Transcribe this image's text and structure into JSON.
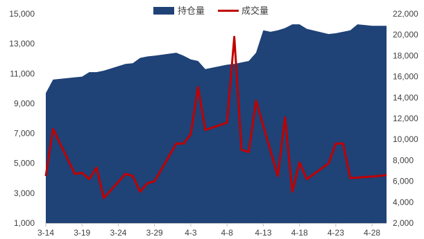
{
  "chart_data": {
    "type": "area+line",
    "legend": {
      "placement": "top-center",
      "entries": [
        "持仓量",
        "成交量"
      ]
    },
    "x_tick_labels": [
      "3-14",
      "3-19",
      "3-24",
      "3-29",
      "4-3",
      "4-8",
      "4-13",
      "4-18",
      "4-23",
      "4-28"
    ],
    "left_axis": {
      "ylim": [
        1000,
        15000
      ],
      "ticks": [
        "1,000",
        "3,000",
        "5,000",
        "7,000",
        "9,000",
        "11,000",
        "13,000",
        "15,000"
      ]
    },
    "right_axis": {
      "ylim": [
        2000,
        22000
      ],
      "ticks": [
        "2,000",
        "4,000",
        "6,000",
        "8,000",
        "10,000",
        "12,000",
        "14,000",
        "16,000",
        "18,000",
        "20,000",
        "22,000"
      ]
    },
    "x_range": [
      "2019-03-14",
      "2019-04-30"
    ],
    "series": [
      {
        "name": "持仓量",
        "type": "area",
        "axis": "left",
        "color": "#1F4277",
        "points": [
          [
            "2019-03-14",
            9700
          ],
          [
            "2019-03-15",
            10600
          ],
          [
            "2019-03-18",
            10750
          ],
          [
            "2019-03-19",
            10800
          ],
          [
            "2019-03-20",
            11100
          ],
          [
            "2019-03-21",
            11100
          ],
          [
            "2019-03-22",
            11200
          ],
          [
            "2019-03-25",
            11650
          ],
          [
            "2019-03-26",
            11700
          ],
          [
            "2019-03-27",
            12050
          ],
          [
            "2019-03-28",
            12150
          ],
          [
            "2019-03-29",
            12200
          ],
          [
            "2019-04-01",
            12400
          ],
          [
            "2019-04-02",
            12200
          ],
          [
            "2019-04-03",
            11950
          ],
          [
            "2019-04-04",
            11850
          ],
          [
            "2019-04-05",
            11300
          ],
          [
            "2019-04-08",
            11600
          ],
          [
            "2019-04-09",
            11650
          ],
          [
            "2019-04-10",
            11750
          ],
          [
            "2019-04-11",
            11850
          ],
          [
            "2019-04-12",
            12400
          ],
          [
            "2019-04-13",
            13900
          ],
          [
            "2019-04-14",
            13800
          ],
          [
            "2019-04-15",
            13900
          ],
          [
            "2019-04-16",
            14050
          ],
          [
            "2019-04-17",
            14300
          ],
          [
            "2019-04-18",
            14300
          ],
          [
            "2019-04-19",
            14000
          ],
          [
            "2019-04-22",
            13650
          ],
          [
            "2019-04-23",
            13700
          ],
          [
            "2019-04-24",
            13800
          ],
          [
            "2019-04-25",
            13900
          ],
          [
            "2019-04-26",
            14300
          ],
          [
            "2019-04-27",
            14250
          ],
          [
            "2019-04-28",
            14200
          ],
          [
            "2019-04-29",
            14200
          ],
          [
            "2019-04-30",
            14200
          ]
        ]
      },
      {
        "name": "成交量",
        "type": "line",
        "axis": "right",
        "color": "#C00000",
        "points": [
          [
            "2019-03-14",
            6500
          ],
          [
            "2019-03-15",
            11000
          ],
          [
            "2019-03-18",
            6700
          ],
          [
            "2019-03-19",
            6800
          ],
          [
            "2019-03-20",
            6200
          ],
          [
            "2019-03-21",
            7300
          ],
          [
            "2019-03-22",
            4400
          ],
          [
            "2019-03-25",
            6700
          ],
          [
            "2019-03-26",
            6500
          ],
          [
            "2019-03-27",
            5000
          ],
          [
            "2019-03-28",
            5800
          ],
          [
            "2019-03-29",
            6000
          ],
          [
            "2019-04-01",
            9600
          ],
          [
            "2019-04-02",
            9600
          ],
          [
            "2019-04-03",
            10500
          ],
          [
            "2019-04-04",
            15000
          ],
          [
            "2019-04-05",
            10900
          ],
          [
            "2019-04-08",
            11600
          ],
          [
            "2019-04-09",
            19800
          ],
          [
            "2019-04-10",
            9000
          ],
          [
            "2019-04-11",
            8800
          ],
          [
            "2019-04-12",
            13700
          ],
          [
            "2019-04-15",
            6500
          ],
          [
            "2019-04-16",
            12100
          ],
          [
            "2019-04-17",
            5000
          ],
          [
            "2019-04-18",
            7800
          ],
          [
            "2019-04-19",
            6200
          ],
          [
            "2019-04-22",
            7700
          ],
          [
            "2019-04-23",
            9600
          ],
          [
            "2019-04-24",
            9600
          ],
          [
            "2019-04-25",
            6300
          ],
          [
            "2019-04-29",
            6500
          ],
          [
            "2019-04-30",
            6600
          ]
        ]
      }
    ]
  }
}
